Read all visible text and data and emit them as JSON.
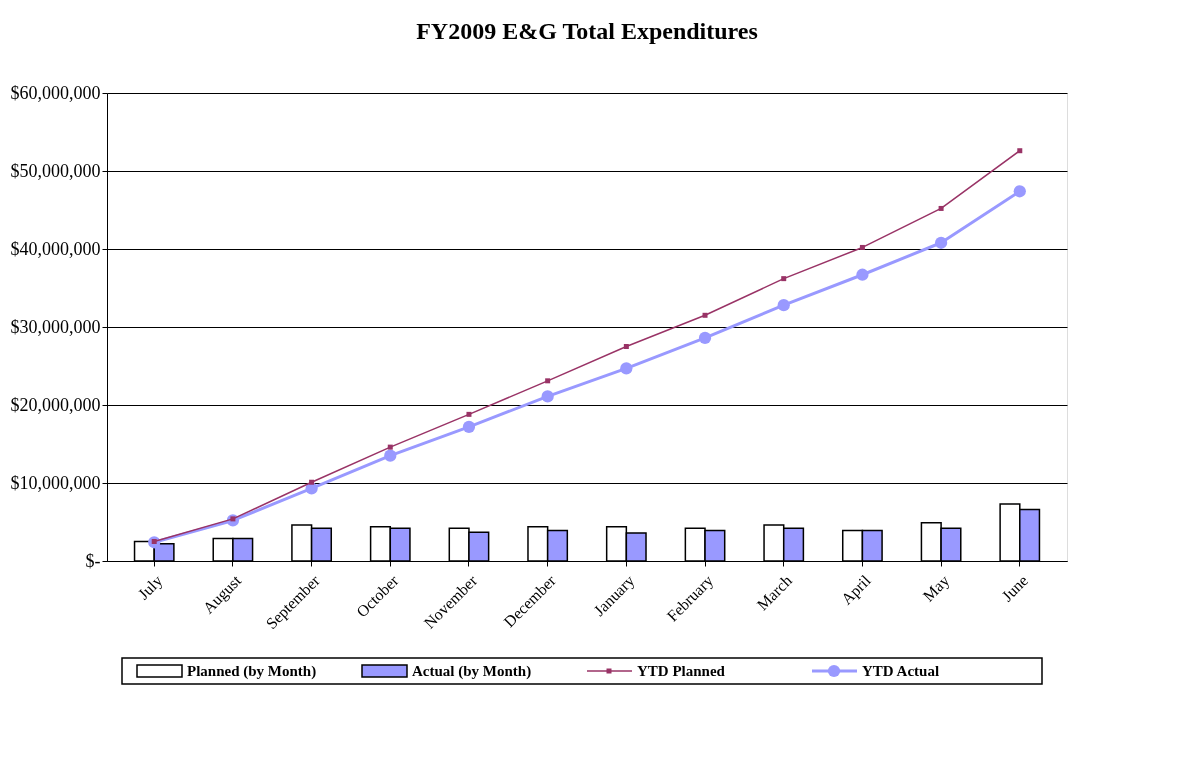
{
  "chart_data": {
    "type": "bar",
    "title": "FY2009 E&G Total Expenditures",
    "categories": [
      "July",
      "August",
      "September",
      "October",
      "November",
      "December",
      "January",
      "February",
      "March",
      "April",
      "May",
      "June"
    ],
    "series": [
      {
        "name": "Planned (by Month)",
        "color": "#ffffff",
        "values": [
          2500000,
          2900000,
          4600000,
          4400000,
          4200000,
          4400000,
          4400000,
          4200000,
          4600000,
          3900000,
          4900000,
          7300000
        ]
      },
      {
        "name": "Actual (by Month)",
        "color": "#9999ff",
        "values": [
          2200000,
          2900000,
          4200000,
          4200000,
          3700000,
          3900000,
          3600000,
          3900000,
          4200000,
          3900000,
          4200000,
          6600000
        ]
      },
      {
        "name": "YTD Planned",
        "type": "line",
        "color": "#993366",
        "marker": "square",
        "values": [
          2500000,
          5400000,
          10100000,
          14600000,
          18800000,
          23100000,
          27500000,
          31500000,
          36200000,
          40200000,
          45200000,
          52600000
        ]
      },
      {
        "name": "YTD Actual",
        "type": "line",
        "color": "#9999ff",
        "marker": "circle",
        "values": [
          2400000,
          5200000,
          9300000,
          13500000,
          17200000,
          21100000,
          24700000,
          28600000,
          32800000,
          36700000,
          40800000,
          47400000
        ]
      }
    ],
    "ylim": [
      0,
      60000000
    ],
    "yticks": [
      {
        "value": 0,
        "label": "$-"
      },
      {
        "value": 10000000,
        "label": "$10,000,000"
      },
      {
        "value": 20000000,
        "label": "$20,000,000"
      },
      {
        "value": 30000000,
        "label": "$30,000,000"
      },
      {
        "value": 40000000,
        "label": "$40,000,000"
      },
      {
        "value": 50000000,
        "label": "$50,000,000"
      },
      {
        "value": 60000000,
        "label": "$60,000,000"
      }
    ],
    "grid": "y",
    "legend": "bottom"
  }
}
